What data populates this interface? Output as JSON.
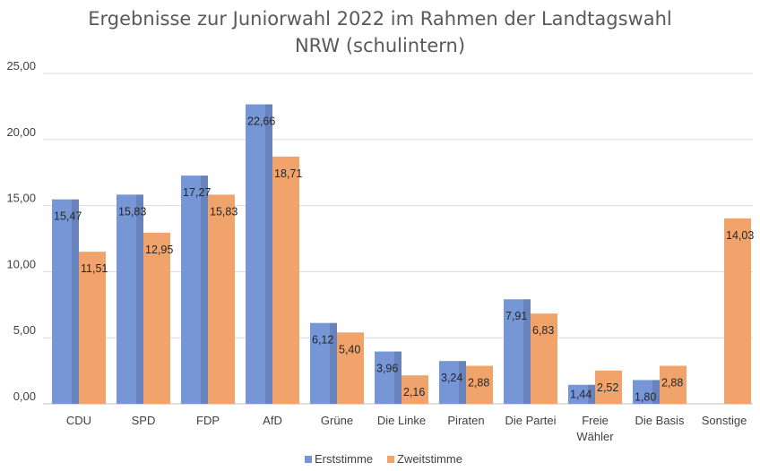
{
  "colors": {
    "erststimme": "#7796d6",
    "zweitstimme": "#f0a46b",
    "grid": "#d9d9d9",
    "text": "#404040"
  },
  "chart_data": {
    "type": "bar",
    "title_lines": [
      "Ergebnisse zur Juniorwahl 2022 im Rahmen der Landtagswahl",
      "NRW (schulintern)"
    ],
    "xlabel": "",
    "ylabel": "",
    "ylim": [
      0,
      25
    ],
    "yticks": [
      "0,00",
      "5,00",
      "10,00",
      "15,00",
      "20,00",
      "25,00"
    ],
    "ytick_values": [
      0,
      5,
      10,
      15,
      20,
      25
    ],
    "grid": true,
    "legend_position": "bottom",
    "categories": [
      [
        "CDU"
      ],
      [
        "SPD"
      ],
      [
        "FDP"
      ],
      [
        "AfD"
      ],
      [
        "Grüne"
      ],
      [
        "Die Linke"
      ],
      [
        "Piraten"
      ],
      [
        "Die Partei"
      ],
      [
        "Freie",
        "Wähler"
      ],
      [
        "Die Basis"
      ],
      [
        "Sonstige"
      ]
    ],
    "series": [
      {
        "name": "Erststimme",
        "values": [
          15.47,
          15.83,
          17.27,
          22.66,
          6.12,
          3.96,
          3.24,
          7.91,
          1.44,
          1.8,
          null
        ],
        "labels": [
          "15,47",
          "15,83",
          "17,27",
          "22,66",
          "6,12",
          "3,96",
          "3,24",
          "7,91",
          "1,44",
          "1,80",
          ""
        ]
      },
      {
        "name": "Zweitstimme",
        "values": [
          11.51,
          12.95,
          15.83,
          18.71,
          5.4,
          2.16,
          2.88,
          6.83,
          2.52,
          2.88,
          14.03
        ],
        "labels": [
          "11,51",
          "12,95",
          "15,83",
          "18,71",
          "5,40",
          "2,16",
          "2,88",
          "6,83",
          "2,52",
          "2,88",
          "14,03"
        ]
      }
    ]
  }
}
